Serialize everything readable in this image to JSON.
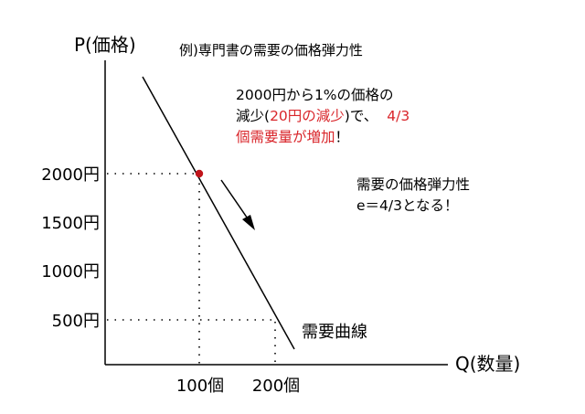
{
  "diagram": {
    "title": "例)専門書の需要の価格弾力性",
    "y_axis_label": "P(価格)",
    "x_axis_label": "Q(数量)",
    "curve_label": "需要曲線",
    "y_ticks": [
      "2000円",
      "1500円",
      "1000円",
      "500円"
    ],
    "x_ticks": [
      "100個",
      "200個"
    ],
    "note1": {
      "line1": "2000円から1%の価格の",
      "line2_prefix": "減少(",
      "line2_highlight": "20円の減少",
      "line2_suffix": ")で、",
      "line2_tail": "4/3",
      "line3_highlight": "個需要量が増加",
      "line3_suffix": "！"
    },
    "note2": {
      "line1": "需要の価格弾力性",
      "line2": "e＝4/3となる！"
    },
    "colors": {
      "highlight": "#d9262b",
      "line": "#000000",
      "point": "#c0141a"
    }
  }
}
